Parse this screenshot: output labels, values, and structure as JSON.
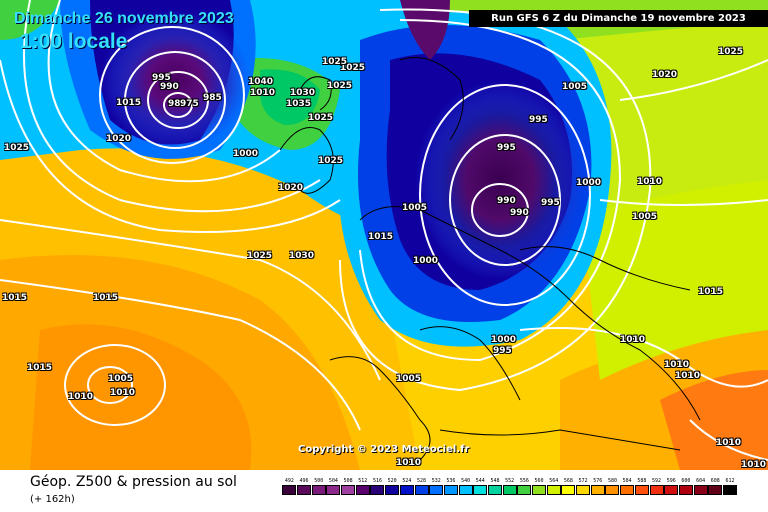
{
  "header": {
    "date_title": "Dimanche 26 novembre 2023",
    "time_title": "1:00 locale",
    "run_info": "Run GFS 6 Z du Dimanche 19 novembre 2023"
  },
  "map": {
    "copyright": "Copyright © 2023 Meteociel.fr",
    "isobar_labels": [
      "995",
      "990",
      "985",
      "980",
      "975",
      "1000",
      "1005",
      "1010",
      "1015",
      "1020",
      "1025",
      "1030",
      "1035",
      "1040"
    ],
    "shown_labels": [
      {
        "text": "995"
      },
      {
        "text": "990"
      },
      {
        "text": "985"
      },
      {
        "text": "980"
      },
      {
        "text": "975"
      },
      {
        "text": "1000"
      },
      {
        "text": "1005"
      },
      {
        "text": "1010"
      },
      {
        "text": "1015"
      },
      {
        "text": "1020"
      },
      {
        "text": "1025"
      },
      {
        "text": "1030"
      },
      {
        "text": "1035"
      },
      {
        "text": "1040"
      }
    ]
  },
  "footer": {
    "title": "Géop. Z500 & pression au sol",
    "subtitle": "(+ 162h)"
  },
  "legend": {
    "values": [
      "492",
      "496",
      "500",
      "504",
      "508",
      "512",
      "516",
      "520",
      "524",
      "528",
      "532",
      "536",
      "540",
      "544",
      "548",
      "552",
      "556",
      "560",
      "564",
      "568",
      "572",
      "576",
      "580",
      "584",
      "588",
      "592",
      "596",
      "600",
      "604",
      "608",
      "612"
    ],
    "colors": [
      "#3a003a",
      "#5a0a5a",
      "#7a1a7a",
      "#8c2a8c",
      "#a040a0",
      "#5a006e",
      "#2a007a",
      "#1000a0",
      "#0010c8",
      "#0040e6",
      "#0070ff",
      "#0098ff",
      "#00c0ff",
      "#00e0e0",
      "#00d2a0",
      "#00c864",
      "#40d040",
      "#90e020",
      "#d0f000",
      "#ffff00",
      "#ffd800",
      "#ffb000",
      "#ff9000",
      "#ff7000",
      "#ff5010",
      "#f03010",
      "#d01010",
      "#b00010",
      "#8a0018",
      "#600018",
      "#000000"
    ]
  }
}
